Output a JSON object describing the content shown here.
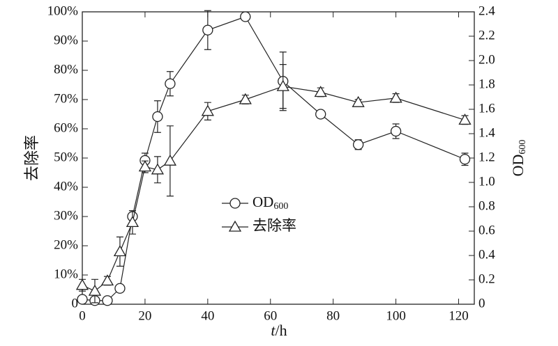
{
  "chart_data": {
    "type": "line",
    "xlabel": "t/h",
    "ylabel": "去除率",
    "y2label": "OD600",
    "x": [
      0,
      4,
      8,
      12,
      16,
      20,
      24,
      28,
      40,
      52,
      64,
      76,
      88,
      100,
      122
    ],
    "xlim": [
      0,
      125
    ],
    "xticks": [
      0,
      20,
      40,
      60,
      80,
      100,
      120
    ],
    "ylim": [
      0,
      100
    ],
    "yticks": [
      0,
      {
        "value": 10,
        "label": "10%"
      },
      {
        "value": 20,
        "label": "20%"
      },
      {
        "value": 30,
        "label": "30%"
      },
      {
        "value": 40,
        "label": "40%"
      },
      {
        "value": 50,
        "label": "50%"
      },
      {
        "value": 60,
        "label": "60%"
      },
      {
        "value": 70,
        "label": "70%"
      },
      {
        "value": 80,
        "label": "80%"
      },
      {
        "value": 90,
        "label": "90%"
      },
      {
        "value": 100,
        "label": "100%"
      }
    ],
    "y2lim": [
      0,
      2.4
    ],
    "y2ticks": [
      0,
      0.2,
      0.4,
      0.6,
      0.8,
      {
        "value": 1,
        "label": "1.0"
      },
      1.2,
      1.4,
      1.6,
      1.8,
      {
        "value": 2,
        "label": "2.0"
      },
      2.2,
      2.4
    ],
    "series": [
      {
        "name": "OD600",
        "marker": "circle",
        "color": "#222",
        "axis": "y2",
        "values": [
          0.04,
          0.03,
          0.03,
          0.13,
          0.72,
          1.18,
          1.54,
          1.81,
          2.25,
          2.36,
          1.83,
          1.56,
          1.31,
          1.42,
          1.19
        ],
        "errors": [
          0.02,
          0.02,
          0.02,
          0.02,
          0.03,
          0.06,
          0.13,
          0.1,
          0.16,
          0.02,
          0.24,
          0.03,
          0.04,
          0.06,
          0.05
        ]
      },
      {
        "name": "去除率",
        "marker": "triangle",
        "color": "#222",
        "values": [
          6.5,
          4.5,
          8,
          18,
          28,
          47,
          46,
          49,
          66,
          70,
          74.5,
          72.5,
          69,
          70.5,
          63
        ],
        "errors": [
          2,
          4,
          1.5,
          5,
          4,
          2,
          4.5,
          12,
          3,
          1.5,
          7.5,
          1.5,
          1,
          1.5,
          1.5
        ]
      }
    ],
    "legend": "center"
  }
}
